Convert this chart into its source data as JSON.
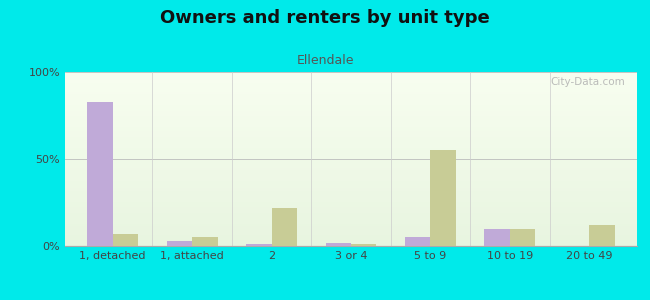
{
  "title": "Owners and renters by unit type",
  "subtitle": "Ellendale",
  "categories": [
    "1, detached",
    "1, attached",
    "2",
    "3 or 4",
    "5 to 9",
    "10 to 19",
    "20 to 49"
  ],
  "owner_values": [
    83,
    3,
    1,
    2,
    5,
    10,
    0
  ],
  "renter_values": [
    7,
    5,
    22,
    1,
    55,
    10,
    12
  ],
  "owner_color": "#c0aad8",
  "renter_color": "#c8cc96",
  "title_fontsize": 13,
  "subtitle_fontsize": 9,
  "tick_fontsize": 8,
  "legend_fontsize": 9,
  "bar_width": 0.32,
  "ylim": [
    0,
    100
  ],
  "yticks": [
    0,
    50,
    100
  ],
  "ytick_labels": [
    "0%",
    "50%",
    "100%"
  ],
  "figure_bg": "#00eaea",
  "plot_bg_top": "#f8fef0",
  "plot_bg_bottom": "#e8f5e0",
  "watermark": "City-Data.com"
}
